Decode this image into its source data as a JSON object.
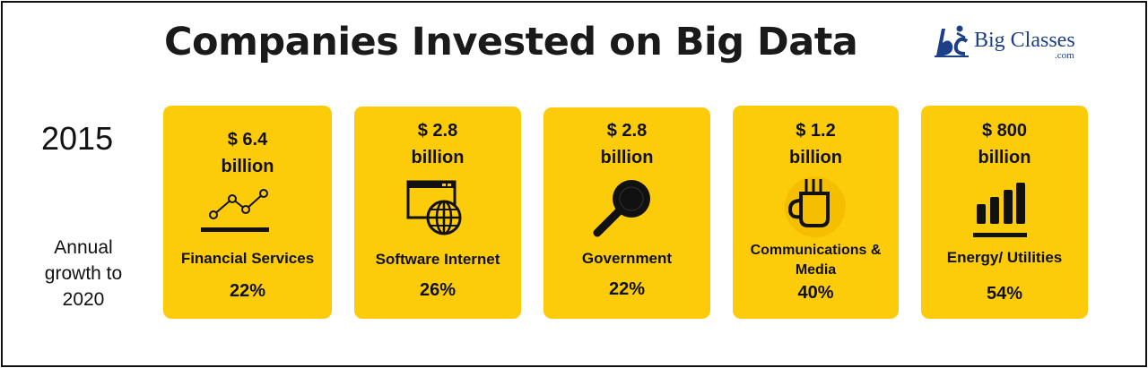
{
  "header": {
    "title": "Companies Invested on Big Data",
    "logo": {
      "name": "Big Classes",
      "suffix": ".com",
      "mark": "bc-logo-icon"
    }
  },
  "row_labels": {
    "year": "2015",
    "growth": [
      "Annual",
      "growth to",
      "2020"
    ]
  },
  "cards": [
    {
      "amount": "$ 6.4",
      "unit": "billion",
      "sector": "Financial Services",
      "growth": "22%",
      "icon": "line-chart-icon"
    },
    {
      "amount": "$ 2.8",
      "unit": "billion",
      "sector": "Software Internet",
      "growth": "26%",
      "icon": "web-globe-icon"
    },
    {
      "amount": "$ 2.8",
      "unit": "billion",
      "sector": "Government",
      "growth": "22%",
      "icon": "magnifier-icon"
    },
    {
      "amount": "$ 1.2",
      "unit": "billion",
      "sector_lines": [
        "Communications &",
        "Media"
      ],
      "growth": "40%",
      "icon": "coffee-cup-icon"
    },
    {
      "amount": "$ 800",
      "unit": "billion",
      "sector": "Energy/ Utilities",
      "growth": "54%",
      "icon": "bar-chart-icon"
    }
  ],
  "colors": {
    "card": "#fccc0a",
    "text": "#111111",
    "logo": "#1d3f87",
    "border": "#111111"
  }
}
